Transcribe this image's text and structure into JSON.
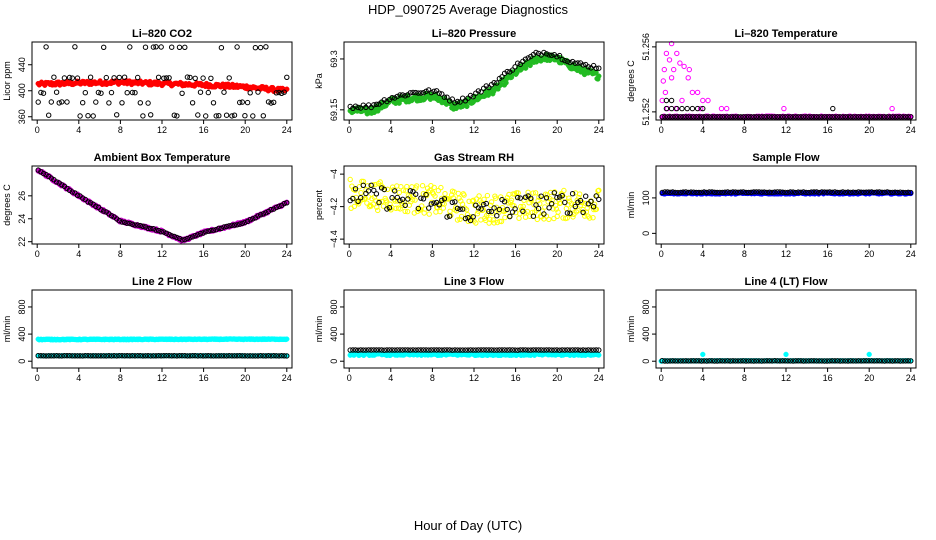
{
  "figure": {
    "title": "HDP_090725  Average Diagnostics",
    "xlabel": "Hour of Day (UTC)"
  },
  "chart_data": [
    {
      "type": "scatter",
      "title": "Li–820 CO2",
      "ylabel": "Licor ppm",
      "xlim": [
        -0.5,
        24.5
      ],
      "ylim": [
        355,
        475
      ],
      "xticks": [
        0,
        4,
        8,
        12,
        16,
        20,
        24
      ],
      "yticks": [
        360,
        400,
        440
      ],
      "series": [
        {
          "color": "#ff0000",
          "marker": "filled",
          "x_range": [
            0.1,
            24
          ],
          "n": 230,
          "y_points": [
            [
              0,
              410
            ],
            [
              4,
              412
            ],
            [
              8,
              413
            ],
            [
              12,
              411
            ],
            [
              16,
              409
            ],
            [
              20,
              406
            ],
            [
              24,
              400
            ]
          ],
          "jitter": 3
        },
        {
          "color": "#000000",
          "marker": "hollow",
          "x_range": [
            0.1,
            24
          ],
          "n": 96,
          "levels": [
            362,
            382,
            397,
            420,
            467
          ],
          "jitter": 1
        }
      ]
    },
    {
      "type": "scatter",
      "title": "Li–820 Pressure",
      "ylabel": "kPa",
      "xlim": [
        -0.5,
        24.5
      ],
      "ylim": [
        69.12,
        69.35
      ],
      "xticks": [
        0,
        4,
        8,
        12,
        16,
        20,
        24
      ],
      "yticks": [
        69.15,
        69.3
      ],
      "series": [
        {
          "color": "#22bb22",
          "marker": "filled",
          "x_range": [
            0.1,
            24
          ],
          "n": 280,
          "y_points": [
            [
              0,
              69.15
            ],
            [
              2,
              69.145
            ],
            [
              4,
              69.175
            ],
            [
              6,
              69.185
            ],
            [
              8,
              69.19
            ],
            [
              9,
              69.18
            ],
            [
              10,
              69.16
            ],
            [
              11,
              69.165
            ],
            [
              12,
              69.18
            ],
            [
              14,
              69.21
            ],
            [
              16,
              69.26
            ],
            [
              18,
              69.3
            ],
            [
              19,
              69.305
            ],
            [
              20,
              69.3
            ],
            [
              22,
              69.27
            ],
            [
              24,
              69.25
            ]
          ],
          "jitter": 0.01
        },
        {
          "color": "#000000",
          "marker": "hollow",
          "x_range": [
            0.1,
            24
          ],
          "n": 96,
          "y_points": [
            [
              0,
              69.16
            ],
            [
              2,
              69.16
            ],
            [
              4,
              69.185
            ],
            [
              6,
              69.2
            ],
            [
              8,
              69.205
            ],
            [
              9,
              69.195
            ],
            [
              10,
              69.175
            ],
            [
              11,
              69.18
            ],
            [
              12,
              69.195
            ],
            [
              14,
              69.23
            ],
            [
              16,
              69.28
            ],
            [
              18,
              69.315
            ],
            [
              19,
              69.32
            ],
            [
              20,
              69.31
            ],
            [
              22,
              69.285
            ],
            [
              24,
              69.275
            ]
          ],
          "jitter": 0.006
        }
      ]
    },
    {
      "type": "scatter",
      "title": "Li–820 Temperature",
      "ylabel": "degrees C",
      "xlim": [
        -0.5,
        24.5
      ],
      "ylim": [
        51.2515,
        51.2563
      ],
      "xticks": [
        0,
        4,
        8,
        12,
        16,
        20,
        24
      ],
      "yticks": [
        51.252,
        51.256
      ],
      "series": [
        {
          "color": "#ff00ff",
          "marker": "filled",
          "x_range": [
            0.1,
            24
          ],
          "n": 240,
          "y_points": [
            [
              0,
              51.2517
            ],
            [
              24,
              51.2517
            ]
          ],
          "jitter": 4e-05
        },
        {
          "color": "#ff00ff",
          "marker": "hollow",
          "explicit": [
            [
              1.0,
              51.2562
            ],
            [
              0.5,
              51.2556
            ],
            [
              1.5,
              51.2556
            ],
            [
              0.8,
              51.2552
            ],
            [
              1.8,
              51.255
            ],
            [
              0.3,
              51.2546
            ],
            [
              1.2,
              51.2546
            ],
            [
              2.2,
              51.2548
            ],
            [
              2.7,
              51.2546
            ],
            [
              0.2,
              51.2539
            ],
            [
              1.0,
              51.2541
            ],
            [
              2.6,
              51.2541
            ],
            [
              0.4,
              51.2532
            ],
            [
              3.0,
              51.2532
            ],
            [
              3.5,
              51.2532
            ],
            [
              0.1,
              51.2527
            ],
            [
              2.0,
              51.2527
            ],
            [
              4.0,
              51.2527
            ],
            [
              4.5,
              51.2527
            ],
            [
              0.6,
              51.2522
            ],
            [
              1.4,
              51.2522
            ],
            [
              3.8,
              51.2522
            ],
            [
              5.8,
              51.2522
            ],
            [
              6.3,
              51.2522
            ],
            [
              11.8,
              51.2522
            ],
            [
              22.2,
              51.2522
            ],
            [
              0.2,
              51.2517
            ],
            [
              2.0,
              51.2517
            ],
            [
              4.0,
              51.2517
            ]
          ]
        },
        {
          "color": "#000000",
          "marker": "hollow",
          "x_range": [
            0.1,
            24
          ],
          "n": 96,
          "y_points": [
            [
              0,
              51.2517
            ],
            [
              24,
              51.2517
            ]
          ],
          "jitter": 0,
          "extra": [
            [
              0.5,
              51.2522
            ],
            [
              1.0,
              51.2522
            ],
            [
              1.5,
              51.2522
            ],
            [
              2.0,
              51.2522
            ],
            [
              2.5,
              51.2522
            ],
            [
              3.0,
              51.2522
            ],
            [
              3.5,
              51.2522
            ],
            [
              4.0,
              51.2522
            ],
            [
              0.5,
              51.2527
            ],
            [
              1.0,
              51.2527
            ],
            [
              16.5,
              51.2522
            ]
          ]
        }
      ]
    },
    {
      "type": "scatter",
      "title": "Ambient Box Temperature",
      "ylabel": "degrees C",
      "xlim": [
        -0.5,
        24.5
      ],
      "ylim": [
        21.8,
        28.6
      ],
      "xticks": [
        0,
        4,
        8,
        12,
        16,
        20,
        24
      ],
      "yticks": [
        22,
        24,
        26
      ],
      "series": [
        {
          "color": "#cc00cc",
          "marker": "filled",
          "x_range": [
            0.1,
            24
          ],
          "n": 260,
          "y_points": [
            [
              0,
              28.3
            ],
            [
              4,
              26.0
            ],
            [
              8,
              23.8
            ],
            [
              12,
              22.9
            ],
            [
              14,
              22.1
            ],
            [
              16,
              22.8
            ],
            [
              20,
              23.7
            ],
            [
              24,
              25.4
            ]
          ],
          "jitter": 0.1
        },
        {
          "color": "#000000",
          "marker": "hollow",
          "x_range": [
            0.1,
            24
          ],
          "n": 96,
          "y_points": [
            [
              0,
              28.3
            ],
            [
              4,
              26.0
            ],
            [
              8,
              23.8
            ],
            [
              12,
              22.9
            ],
            [
              14,
              22.1
            ],
            [
              16,
              22.8
            ],
            [
              20,
              23.7
            ],
            [
              24,
              25.4
            ]
          ],
          "jitter": 0.05
        }
      ]
    },
    {
      "type": "scatter",
      "title": "Gas Stream RH",
      "ylabel": "percent",
      "xlim": [
        -0.5,
        24.5
      ],
      "ylim": [
        -4.43,
        -3.95
      ],
      "xticks": [
        0,
        4,
        8,
        12,
        16,
        20,
        24
      ],
      "yticks": [
        -4.4,
        -4.2,
        -4.0
      ],
      "series": [
        {
          "color": "#ffff00",
          "marker": "hollow",
          "x_range": [
            0.1,
            24
          ],
          "n": 300,
          "y_points": [
            [
              0,
              -4.12
            ],
            [
              8,
              -4.16
            ],
            [
              12,
              -4.22
            ],
            [
              16,
              -4.2
            ],
            [
              24,
              -4.18
            ]
          ],
          "jitter": 0.09
        },
        {
          "color": "#000000",
          "marker": "hollow",
          "x_range": [
            0.1,
            24
          ],
          "n": 96,
          "y_points": [
            [
              0,
              -4.12
            ],
            [
              8,
              -4.18
            ],
            [
              12,
              -4.24
            ],
            [
              16,
              -4.2
            ],
            [
              24,
              -4.16
            ]
          ],
          "jitter": 0.07
        }
      ]
    },
    {
      "type": "scatter",
      "title": "Sample Flow",
      "ylabel": "ml/min",
      "xlim": [
        -0.5,
        24.5
      ],
      "ylim": [
        -30,
        190
      ],
      "xticks": [
        0,
        4,
        8,
        12,
        16,
        20,
        24
      ],
      "yticks": [
        0,
        100
      ],
      "series": [
        {
          "color": "#0000ff",
          "marker": "filled",
          "x_range": [
            0.1,
            24
          ],
          "n": 260,
          "y_points": [
            [
              0,
              113
            ],
            [
              24,
              113
            ]
          ],
          "jitter": 2
        },
        {
          "color": "#000000",
          "marker": "hollow",
          "x_range": [
            0.1,
            24
          ],
          "n": 96,
          "y_points": [
            [
              0,
              116
            ],
            [
              24,
              116
            ]
          ],
          "jitter": 1
        }
      ]
    },
    {
      "type": "scatter",
      "title": "Line 2 Flow",
      "ylabel": "ml/min",
      "xlim": [
        -0.5,
        24.5
      ],
      "ylim": [
        -100,
        1050
      ],
      "xticks": [
        0,
        4,
        8,
        12,
        16,
        20,
        24
      ],
      "yticks": [
        0,
        400,
        800
      ],
      "series": [
        {
          "color": "#00ffff",
          "marker": "filled",
          "x_range": [
            0.1,
            24
          ],
          "n": 260,
          "y_points": [
            [
              0,
              320
            ],
            [
              24,
              325
            ]
          ],
          "jitter": 5
        },
        {
          "color": "#00ffff",
          "marker": "filled",
          "x_range": [
            0.1,
            24
          ],
          "n": 96,
          "y_points": [
            [
              0,
              80
            ],
            [
              24,
              80
            ]
          ],
          "jitter": 2
        },
        {
          "color": "#000000",
          "marker": "hollow",
          "x_range": [
            0.1,
            24
          ],
          "n": 96,
          "y_points": [
            [
              0,
              80
            ],
            [
              24,
              80
            ]
          ],
          "jitter": 2
        }
      ]
    },
    {
      "type": "scatter",
      "title": "Line 3 Flow",
      "ylabel": "ml/min",
      "xlim": [
        -0.5,
        24.5
      ],
      "ylim": [
        -100,
        1050
      ],
      "xticks": [
        0,
        4,
        8,
        12,
        16,
        20,
        24
      ],
      "yticks": [
        0,
        400,
        800
      ],
      "series": [
        {
          "color": "#00ffff",
          "marker": "filled",
          "x_range": [
            0.1,
            24
          ],
          "n": 260,
          "y_points": [
            [
              0,
              100
            ],
            [
              24,
              100
            ]
          ],
          "jitter": 15
        },
        {
          "color": "#000000",
          "marker": "hollow",
          "x_range": [
            0.1,
            24
          ],
          "n": 96,
          "y_points": [
            [
              0,
              165
            ],
            [
              24,
              165
            ]
          ],
          "jitter": 2
        }
      ]
    },
    {
      "type": "scatter",
      "title": "Line 4 (LT) Flow",
      "ylabel": "ml/min",
      "xlim": [
        -0.5,
        24.5
      ],
      "ylim": [
        -100,
        1050
      ],
      "xticks": [
        0,
        4,
        8,
        12,
        16,
        20,
        24
      ],
      "yticks": [
        0,
        400,
        800
      ],
      "series": [
        {
          "color": "#00ffff",
          "marker": "filled",
          "x_range": [
            0.1,
            24
          ],
          "n": 200,
          "y_points": [
            [
              0,
              5
            ],
            [
              24,
              5
            ]
          ],
          "jitter": 2,
          "extra": [
            [
              0.0,
              0
            ],
            [
              4.0,
              100
            ],
            [
              12.0,
              100
            ],
            [
              20.0,
              100
            ]
          ]
        },
        {
          "color": "#000000",
          "marker": "hollow",
          "x_range": [
            0.1,
            24
          ],
          "n": 96,
          "y_points": [
            [
              0,
              5
            ],
            [
              24,
              5
            ]
          ],
          "jitter": 2
        }
      ]
    }
  ]
}
